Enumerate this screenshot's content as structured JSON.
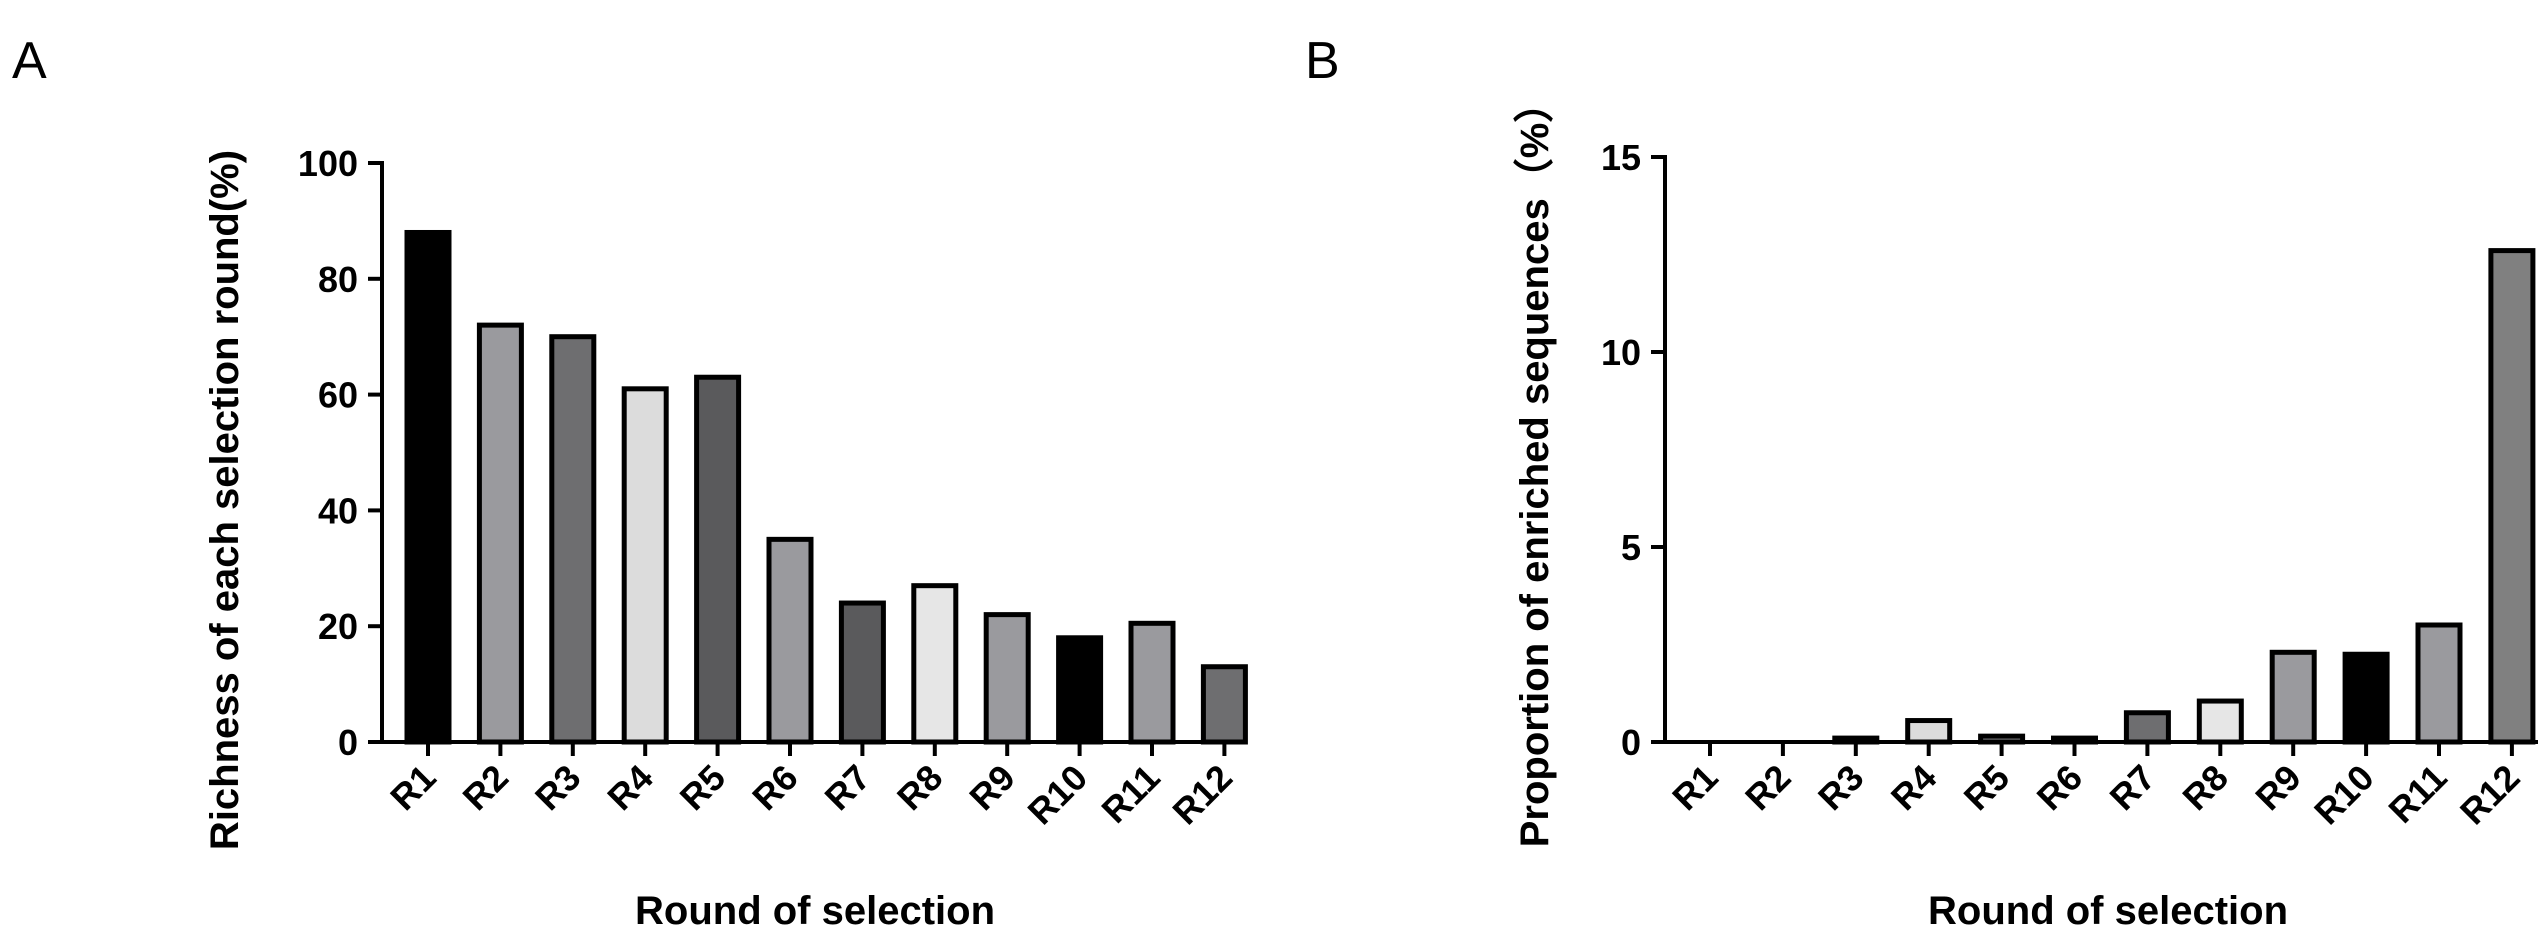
{
  "panels": {
    "a": {
      "letter": "A"
    },
    "b": {
      "letter": "B"
    }
  },
  "chart_data": [
    {
      "type": "bar",
      "title": "",
      "categories": [
        "R1",
        "R2",
        "R3",
        "R4",
        "R5",
        "R6",
        "R7",
        "R8",
        "R9",
        "R10",
        "R11",
        "R12"
      ],
      "values": [
        88,
        72,
        70,
        61,
        63,
        35,
        24,
        27,
        22,
        18,
        20.5,
        13
      ],
      "colors": [
        "#000000",
        "#9a9a9e",
        "#6e6e70",
        "#dcdcdc",
        "#5a5a5c",
        "#9a9a9e",
        "#5a5a5c",
        "#e6e6e6",
        "#9a9a9e",
        "#000000",
        "#9a9a9e",
        "#6e6e70"
      ],
      "xlabel": "Round of selection",
      "ylabel": "Richness of each selection round(%)",
      "ylim": [
        0,
        100
      ],
      "yticks": [
        0,
        20,
        40,
        60,
        80,
        100
      ],
      "grid": false,
      "legend": "none"
    },
    {
      "type": "bar",
      "title": "",
      "categories": [
        "R1",
        "R2",
        "R3",
        "R4",
        "R5",
        "R6",
        "R7",
        "R8",
        "R9",
        "R10",
        "R11",
        "R12"
      ],
      "values": [
        0,
        0,
        0.1,
        0.55,
        0.15,
        0.1,
        0.75,
        1.05,
        2.3,
        2.25,
        3.0,
        12.6
      ],
      "colors": [
        "#ffffff",
        "#ffffff",
        "#dcdcdc",
        "#dcdcdc",
        "#9a9a9e",
        "#9a9a9e",
        "#6e6e70",
        "#e6e6e6",
        "#9a9a9e",
        "#000000",
        "#9a9a9e",
        "#808080"
      ],
      "xlabel": "Round of selection",
      "ylabel": "Proportion of enriched sequences（%）",
      "ylim": [
        0,
        15
      ],
      "yticks": [
        0,
        5,
        10,
        15
      ],
      "grid": false,
      "legend": "none"
    }
  ]
}
